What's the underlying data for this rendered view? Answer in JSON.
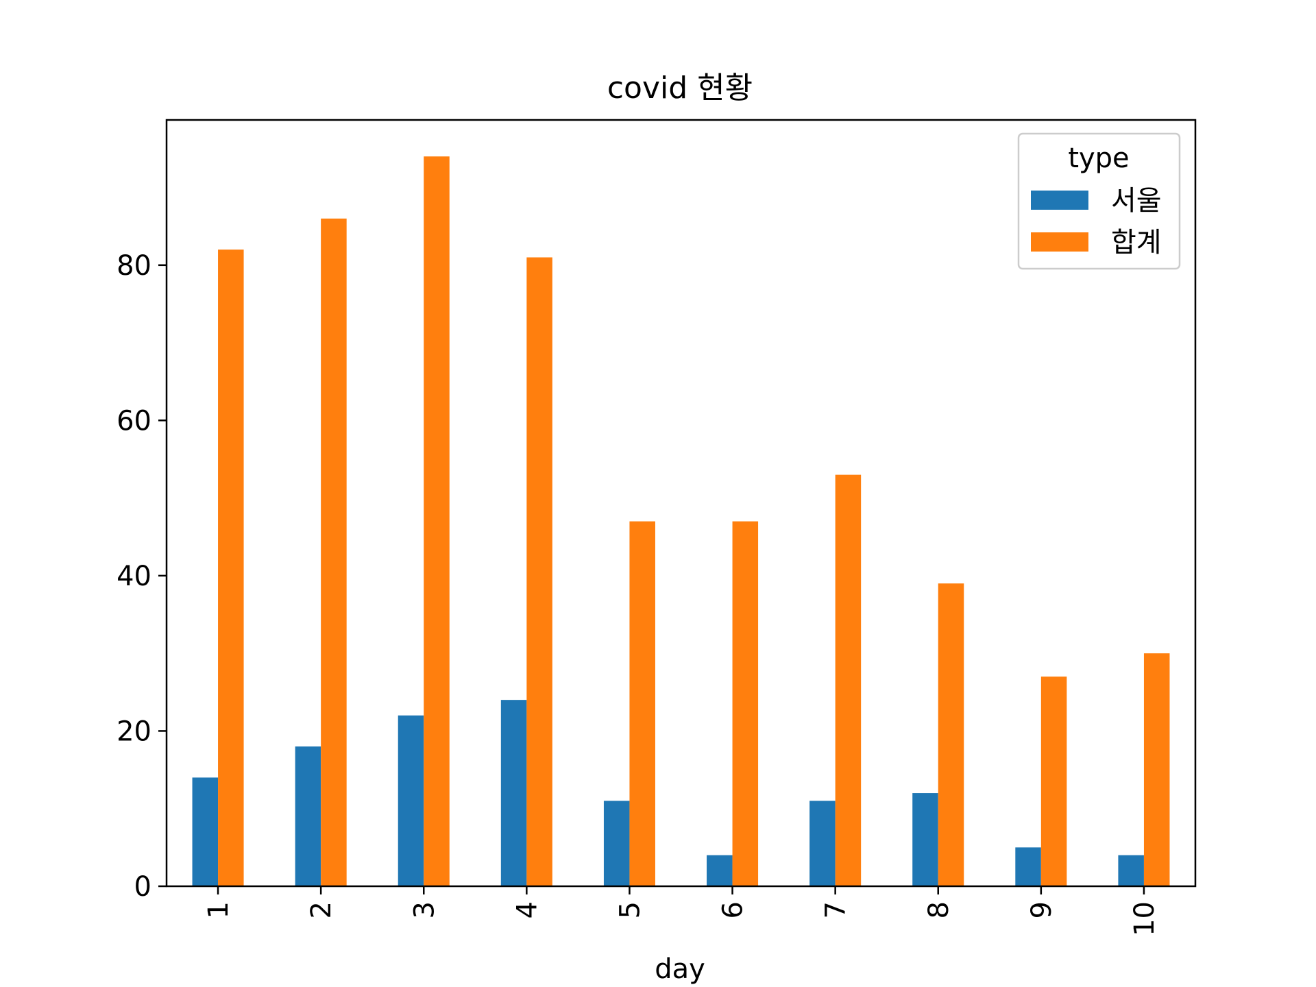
{
  "chart_data": {
    "type": "bar",
    "title": "covid 현황",
    "xlabel": "day",
    "ylabel": "",
    "categories": [
      "1",
      "2",
      "3",
      "4",
      "5",
      "6",
      "7",
      "8",
      "9",
      "10"
    ],
    "series": [
      {
        "name": "서울",
        "color": "#1f77b4",
        "values": [
          14,
          18,
          22,
          24,
          11,
          4,
          11,
          12,
          5,
          4
        ]
      },
      {
        "name": "합계",
        "color": "#ff7f0e",
        "values": [
          82,
          86,
          94,
          81,
          47,
          47,
          53,
          39,
          27,
          30
        ]
      }
    ],
    "ylim": [
      0,
      98.7
    ],
    "yticks": [
      "0",
      "20",
      "40",
      "60",
      "80"
    ],
    "grid": false,
    "legend": {
      "title": "type",
      "placement": "upper right"
    }
  }
}
